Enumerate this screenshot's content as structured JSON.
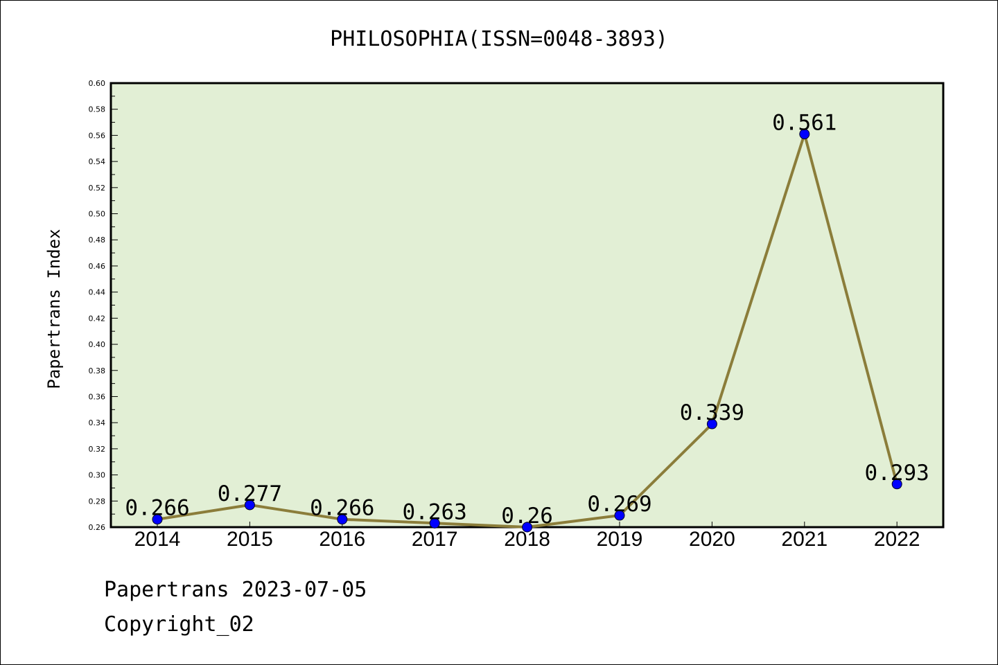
{
  "chart_data": {
    "type": "line",
    "title": "PHILOSOPHIA(ISSN=0048-3893)",
    "xlabel": "",
    "ylabel": "Papertrans Index",
    "categories": [
      "2014",
      "2015",
      "2016",
      "2017",
      "2018",
      "2019",
      "2020",
      "2021",
      "2022"
    ],
    "series": [
      {
        "values": [
          0.266,
          0.277,
          0.266,
          0.263,
          0.26,
          0.269,
          0.339,
          0.561,
          0.293
        ]
      }
    ],
    "data_labels": [
      "0.266",
      "0.277",
      "0.266",
      "0.263",
      "0.26",
      "0.269",
      "0.339",
      "0.561",
      "0.293"
    ],
    "ylim": [
      0.26,
      0.6
    ],
    "y_ticks": [
      "0.26",
      "0.28",
      "0.30",
      "0.32",
      "0.34",
      "0.36",
      "0.38",
      "0.40",
      "0.42",
      "0.44",
      "0.46",
      "0.48",
      "0.50",
      "0.52",
      "0.54",
      "0.56",
      "0.58",
      "0.60"
    ],
    "grid": false,
    "legend": "none",
    "colors": {
      "plot_background": "#e2efd5",
      "line": "#8b7d3a",
      "marker": "#0000ff"
    }
  },
  "footer": {
    "line1": "Papertrans 2023-07-05",
    "line2": "Copyright_02"
  }
}
